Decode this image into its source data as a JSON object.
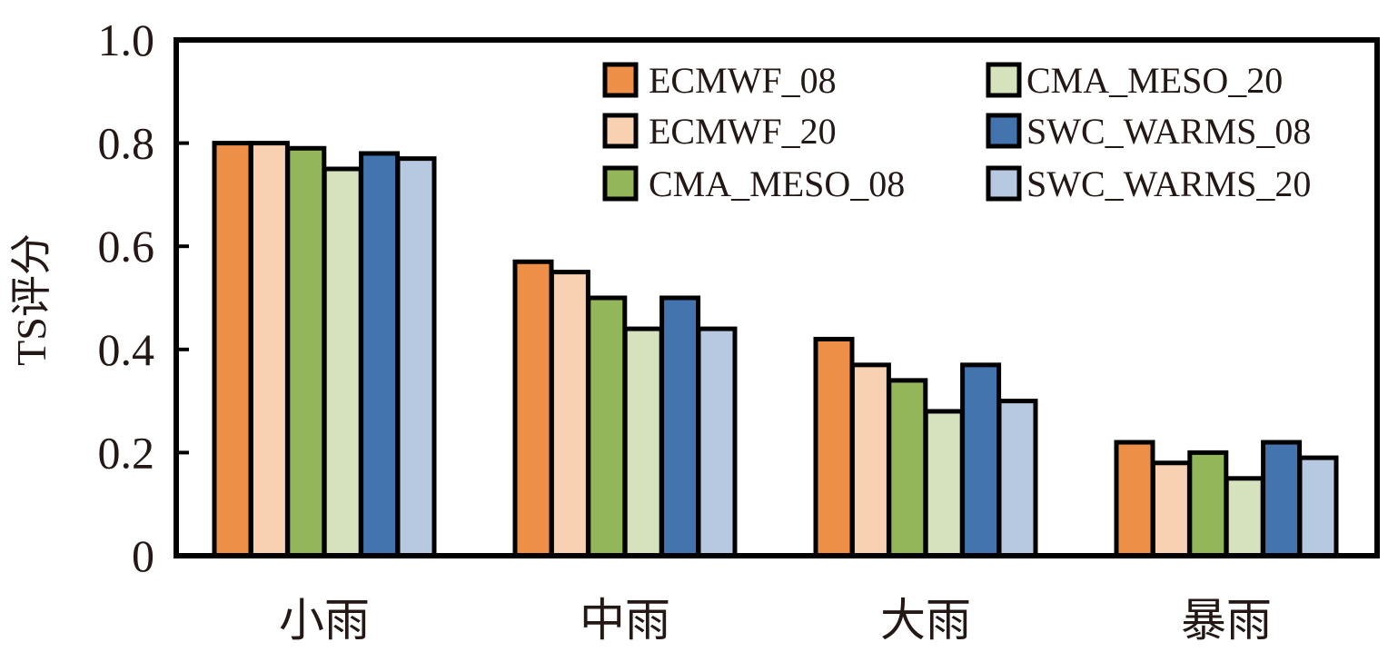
{
  "chart_data": {
    "type": "bar",
    "title": "",
    "xlabel": "",
    "ylabel": "TS评分",
    "ylim": [
      0,
      1.0
    ],
    "yticks": [
      "0",
      "0.2",
      "0.4",
      "0.6",
      "0.8",
      "1.0"
    ],
    "grid": false,
    "legend_position": "top-right",
    "categories": [
      "小雨",
      "中雨",
      "大雨",
      "暴雨"
    ],
    "series": [
      {
        "name": "ECMWF_08",
        "color": "#ED8F46",
        "values": [
          0.8,
          0.57,
          0.42,
          0.22
        ]
      },
      {
        "name": "ECMWF_20",
        "color": "#F8D0B2",
        "values": [
          0.8,
          0.55,
          0.37,
          0.18
        ]
      },
      {
        "name": "CMA_MESO_08",
        "color": "#93B65A",
        "values": [
          0.79,
          0.5,
          0.34,
          0.2
        ]
      },
      {
        "name": "CMA_MESO_20",
        "color": "#D6E2BD",
        "values": [
          0.75,
          0.44,
          0.28,
          0.15
        ]
      },
      {
        "name": "SWC_WARMS_08",
        "color": "#4474AE",
        "values": [
          0.78,
          0.5,
          0.37,
          0.22
        ]
      },
      {
        "name": "SWC_WARMS_20",
        "color": "#B7C9E0",
        "values": [
          0.77,
          0.44,
          0.3,
          0.19
        ]
      }
    ]
  }
}
